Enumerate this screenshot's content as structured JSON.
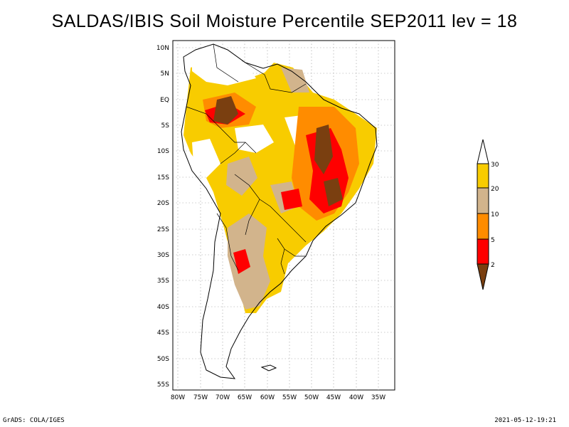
{
  "title": "SALDAS/IBIS Soil Moisture Percentile SEP2011 lev = 18",
  "footer": {
    "left": "GrADS: COLA/IGES",
    "right": "2021-05-12-19:21"
  },
  "map": {
    "lat_labels": [
      "10N",
      "5N",
      "EQ",
      "5S",
      "10S",
      "15S",
      "20S",
      "25S",
      "30S",
      "35S",
      "40S",
      "45S",
      "50S",
      "55S"
    ],
    "lon_labels": [
      "80W",
      "75W",
      "70W",
      "65W",
      "60W",
      "55W",
      "50W",
      "45W",
      "40W",
      "35W"
    ]
  },
  "legend": {
    "levels": [
      "30",
      "20",
      "10",
      "5",
      "2"
    ],
    "colors": {
      "above30": "#ffffff",
      "b20_30": "#f8cc00",
      "b10_20": "#d2b48c",
      "b5_10": "#ff8c00",
      "b2_5": "#ff0000",
      "below2": "#7a3f10"
    }
  }
}
